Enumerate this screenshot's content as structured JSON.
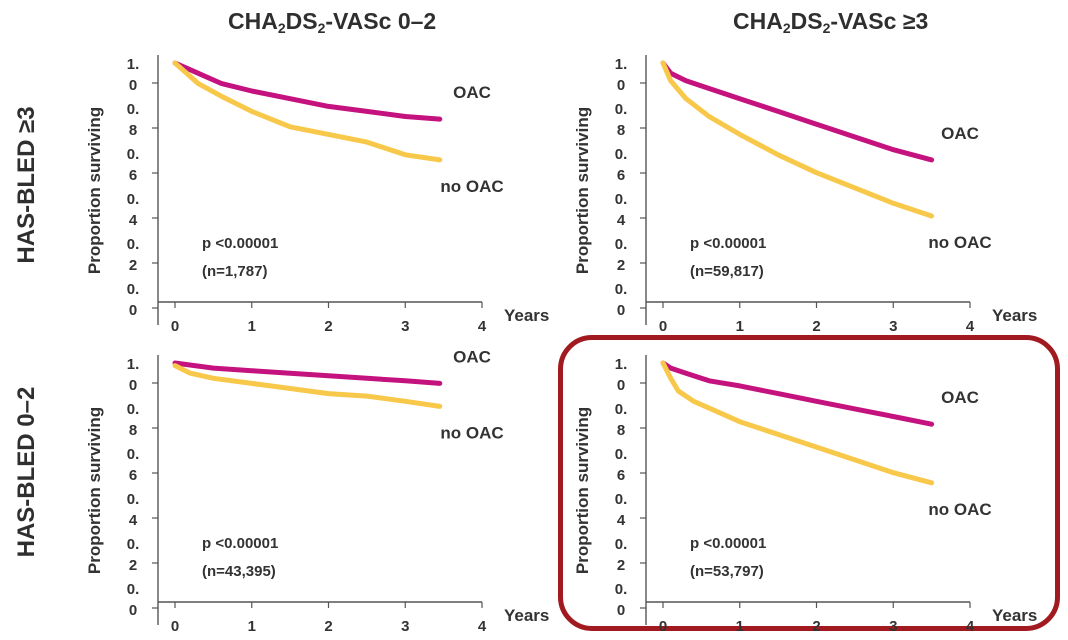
{
  "columns": [
    {
      "label_prefix": "CHA",
      "sub1": "2",
      "mid": "DS",
      "sub2": "2",
      "label_suffix": "-VASc 0–2"
    },
    {
      "label_prefix": "CHA",
      "sub1": "2",
      "mid": "DS",
      "sub2": "2",
      "label_suffix": "-VASc ≥3"
    }
  ],
  "rows": [
    "HAS-BLED ≥3",
    "HAS-BLED 0–2"
  ],
  "colors": {
    "oac": "#c4127f",
    "no_oac": "#f8c84a",
    "highlight": "#a11a1f"
  },
  "chart_data": [
    {
      "type": "line",
      "panel": "HAS-BLED ≥3 / CHA2DS2-VASc 0–2",
      "ylabel": "Proportion surviving",
      "xlabel": "Years",
      "y_ticks": [
        "1.\n0",
        "0.\n8",
        "0.\n6",
        "0.\n4",
        "0.\n2",
        "0.\n0"
      ],
      "x_ticks": [
        "0",
        "1",
        "2",
        "3",
        "4"
      ],
      "xlim": [
        0,
        4
      ],
      "ylim": [
        0,
        1
      ],
      "p_value": "p <0.00001",
      "n": "(n=1,787)",
      "series": [
        {
          "name": "OAC",
          "x": [
            0,
            0.3,
            0.6,
            1.0,
            1.5,
            2.0,
            2.5,
            3.0,
            3.45
          ],
          "y": [
            1.0,
            0.96,
            0.92,
            0.89,
            0.86,
            0.83,
            0.81,
            0.79,
            0.78
          ]
        },
        {
          "name": "no OAC",
          "x": [
            0,
            0.3,
            0.6,
            1.0,
            1.5,
            2.0,
            2.5,
            3.0,
            3.45
          ],
          "y": [
            1.0,
            0.92,
            0.87,
            0.81,
            0.75,
            0.72,
            0.69,
            0.64,
            0.62
          ]
        }
      ]
    },
    {
      "type": "line",
      "panel": "HAS-BLED ≥3 / CHA2DS2-VASc ≥3",
      "ylabel": "Proportion surviving",
      "xlabel": "Years",
      "y_ticks": [
        "1.\n0",
        "0.\n8",
        "0.\n6",
        "0.\n4",
        "0.\n2",
        "0.\n0"
      ],
      "x_ticks": [
        "0",
        "1",
        "2",
        "3",
        "4"
      ],
      "xlim": [
        0,
        4
      ],
      "ylim": [
        0,
        1
      ],
      "p_value": "p <0.00001",
      "n": "(n=59,817)",
      "series": [
        {
          "name": "OAC",
          "x": [
            0,
            0.1,
            0.3,
            0.6,
            1.0,
            1.5,
            2.0,
            2.5,
            3.0,
            3.5
          ],
          "y": [
            1.0,
            0.96,
            0.93,
            0.9,
            0.86,
            0.81,
            0.76,
            0.71,
            0.66,
            0.62
          ]
        },
        {
          "name": "no OAC",
          "x": [
            0,
            0.1,
            0.3,
            0.6,
            1.0,
            1.5,
            2.0,
            2.5,
            3.0,
            3.5
          ],
          "y": [
            1.0,
            0.93,
            0.86,
            0.79,
            0.72,
            0.64,
            0.57,
            0.51,
            0.45,
            0.4
          ]
        }
      ]
    },
    {
      "type": "line",
      "panel": "HAS-BLED 0–2 / CHA2DS2-VASc 0–2",
      "ylabel": "Proportion surviving",
      "xlabel": "Years",
      "y_ticks": [
        "1.\n0",
        "0.\n8",
        "0.\n6",
        "0.\n4",
        "0.\n2",
        "0.\n0"
      ],
      "x_ticks": [
        "0",
        "1",
        "2",
        "3",
        "4"
      ],
      "xlim": [
        0,
        4
      ],
      "ylim": [
        0,
        1
      ],
      "p_value": "p <0.00001",
      "n": "(n=43,395)",
      "series": [
        {
          "name": "OAC",
          "x": [
            0,
            0.5,
            1.0,
            1.5,
            2.0,
            2.5,
            3.0,
            3.45
          ],
          "y": [
            1.0,
            0.98,
            0.97,
            0.96,
            0.95,
            0.94,
            0.93,
            0.92
          ]
        },
        {
          "name": "no OAC",
          "x": [
            0,
            0.2,
            0.5,
            1.0,
            1.5,
            2.0,
            2.5,
            3.0,
            3.45
          ],
          "y": [
            0.99,
            0.96,
            0.94,
            0.92,
            0.9,
            0.88,
            0.87,
            0.85,
            0.83
          ]
        }
      ]
    },
    {
      "type": "line",
      "panel": "HAS-BLED 0–2 / CHA2DS2-VASc ≥3",
      "ylabel": "Proportion surviving",
      "xlabel": "Years",
      "y_ticks": [
        "1.\n0",
        "0.\n8",
        "0.\n6",
        "0.\n4",
        "0.\n2",
        "0.\n0"
      ],
      "x_ticks": [
        "0",
        "1",
        "2",
        "3",
        "4"
      ],
      "xlim": [
        0,
        4
      ],
      "ylim": [
        0,
        1
      ],
      "p_value": "p <0.00001",
      "n": "(n=53,797)",
      "highlighted": true,
      "series": [
        {
          "name": "OAC",
          "x": [
            0,
            0.1,
            0.3,
            0.6,
            1.0,
            1.5,
            2.0,
            2.5,
            3.0,
            3.5
          ],
          "y": [
            1.0,
            0.98,
            0.96,
            0.93,
            0.91,
            0.88,
            0.85,
            0.82,
            0.79,
            0.76
          ]
        },
        {
          "name": "no OAC",
          "x": [
            0,
            0.1,
            0.2,
            0.4,
            0.7,
            1.0,
            1.5,
            2.0,
            2.5,
            3.0,
            3.5
          ],
          "y": [
            1.0,
            0.94,
            0.89,
            0.85,
            0.81,
            0.77,
            0.72,
            0.67,
            0.62,
            0.57,
            0.53
          ]
        }
      ]
    }
  ]
}
